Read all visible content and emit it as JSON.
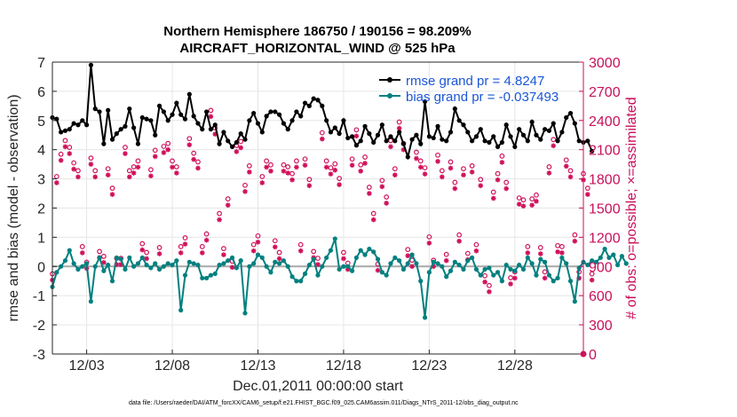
{
  "chart_data": {
    "type": "line",
    "title": "Northern Hemisphere 186750 / 190156 = 98.209%",
    "subtitle": "AIRCRAFT_HORIZONTAL_WIND @ 525 hPa",
    "xlabel": "Dec.01,2011 00:00:00 start",
    "ylabel_left": "rmse and bias (model - observation)",
    "ylabel_right": "# of obs: o=possible; ×=assimilated",
    "x_tick_labels": [
      "12/03",
      "12/08",
      "12/13",
      "12/18",
      "12/23",
      "12/28"
    ],
    "x_tick_days": [
      2,
      7,
      12,
      17,
      22,
      27
    ],
    "xlim_days": [
      0,
      31
    ],
    "ylim_left": [
      -3,
      7
    ],
    "ylim_right": [
      0,
      3000
    ],
    "y_left_ticks": [
      -3,
      -2,
      -1,
      0,
      1,
      2,
      3,
      4,
      5,
      6,
      7
    ],
    "y_right_ticks": [
      0,
      300,
      600,
      900,
      1200,
      1500,
      1800,
      2100,
      2400,
      2700,
      3000
    ],
    "legend": [
      "rmse grand pr = 4.8247",
      "bias grand pr = -0.037493"
    ],
    "legend_position": "top-right",
    "colors": {
      "rmse": "#000000",
      "bias": "#00807f",
      "obs": "#d0105a",
      "right_axis": "#c8105a"
    },
    "series": [
      {
        "name": "rmse grand pr = 4.8247",
        "x_start_day": 0,
        "x_step_days": 0.25,
        "values": [
          5.1,
          5.05,
          4.6,
          4.65,
          4.7,
          4.9,
          4.85,
          5.0,
          4.85,
          6.9,
          5.4,
          5.3,
          4.2,
          5.35,
          4.35,
          4.55,
          4.7,
          4.8,
          5.4,
          4.75,
          4.2,
          5.1,
          5.05,
          5.0,
          4.5,
          5.5,
          5.3,
          5.0,
          5.2,
          5.6,
          5.2,
          5.05,
          5.9,
          5.15,
          4.9,
          4.7,
          5.3,
          4.7,
          4.85,
          4.2,
          4.6,
          4.3,
          4.1,
          4.25,
          4.55,
          4.35,
          5.0,
          5.25,
          4.9,
          4.6,
          5.15,
          5.3,
          5.3,
          5.2,
          4.9,
          4.7,
          5.0,
          5.3,
          5.15,
          5.6,
          5.5,
          5.75,
          5.7,
          5.5,
          5.0,
          4.6,
          4.75,
          4.55,
          5.0,
          4.4,
          4.45,
          4.15,
          4.3,
          4.8,
          4.55,
          4.25,
          4.5,
          4.85,
          4.3,
          4.45,
          4.3,
          4.6,
          4.2,
          3.75,
          4.35,
          4.5,
          4.2,
          5.65,
          4.45,
          4.4,
          4.8,
          4.35,
          4.3,
          4.6,
          5.4,
          5.0,
          4.85,
          4.6,
          4.3,
          4.45,
          4.7,
          4.3,
          4.25,
          4.45,
          4.1,
          4.25,
          4.85,
          4.45,
          4.1,
          4.7,
          4.5,
          4.3,
          4.95,
          4.5,
          4.35,
          4.7,
          4.65,
          4.9,
          4.3,
          4.6,
          5.1,
          5.25,
          4.9,
          4.3,
          4.25,
          4.3,
          3.95
        ]
      },
      {
        "name": "bias grand pr = -0.037493",
        "x_start_day": 0,
        "x_step_days": 0.25,
        "values": [
          -0.7,
          -0.2,
          0.0,
          0.2,
          0.55,
          0.1,
          -0.1,
          0.0,
          0.1,
          -1.2,
          0.0,
          0.3,
          -0.15,
          0.05,
          -0.5,
          0.3,
          0.25,
          -0.1,
          0.3,
          0.0,
          0.1,
          0.3,
          0.05,
          -0.05,
          0.1,
          -0.1,
          0.0,
          0.1,
          0.05,
          0.2,
          -1.5,
          -0.3,
          0.15,
          0.1,
          0.05,
          -0.4,
          -0.4,
          -0.3,
          -0.25,
          0.05,
          0.1,
          0.2,
          0.3,
          -0.05,
          0.2,
          -1.6,
          0.0,
          0.1,
          0.4,
          0.3,
          0.0,
          -0.2,
          0.15,
          0.1,
          0.2,
          0.0,
          -0.35,
          -0.5,
          -0.5,
          -0.25,
          0.05,
          0.25,
          -0.3,
          0.0,
          0.3,
          0.55,
          0.95,
          -0.1,
          0.0,
          0.0,
          -0.15,
          0.3,
          0.55,
          0.4,
          0.6,
          0.5,
          0.25,
          -0.2,
          -0.3,
          0.1,
          0.3,
          0.2,
          -0.1,
          0.1,
          0.4,
          0.1,
          -0.5,
          -1.75,
          -0.2,
          0.15,
          0.1,
          0.0,
          -0.35,
          -0.15,
          0.15,
          0.05,
          -0.1,
          0.2,
          0.3,
          -0.1,
          -0.3,
          -0.1,
          -0.05,
          -0.3,
          -0.2,
          -0.5,
          0.05,
          -0.1,
          -0.15,
          0.05,
          -0.1,
          0.3,
          0.1,
          -0.3,
          0.25,
          0.15,
          -0.3,
          -0.5,
          -0.4,
          0.3,
          0.1,
          -0.5,
          -1.2,
          -0.05,
          0.15,
          0.05,
          0.2,
          0.15,
          0.3,
          0.6,
          0.3,
          0.4,
          0.05,
          0.35,
          0.1
        ]
      },
      {
        "name": "o=possible",
        "x_start_day": 0,
        "x_step_days": 0.25,
        "values": [
          760,
          1760,
          1990,
          2130,
          2060,
          1900,
          1820,
          1040,
          880,
          1950,
          1820,
          990,
          940,
          1840,
          1640,
          920,
          920,
          2060,
          1820,
          1860,
          1920,
          1070,
          980,
          1830,
          2030,
          1030,
          2070,
          2100,
          1920,
          1860,
          1040,
          1130,
          2150,
          2000,
          1910,
          1040,
          1170,
          2440,
          2260,
          1380,
          1020,
          1530,
          890,
          2080,
          2120,
          1670,
          1870,
          1060,
          1150,
          1760,
          1920,
          1880,
          1100,
          980,
          1880,
          1860,
          1790,
          1920,
          1060,
          1940,
          1730,
          990,
          920,
          2210,
          1920,
          1850,
          1890,
          1740,
          980,
          870,
          1940,
          2240,
          1880,
          1960,
          1650,
          1380,
          860,
          1720,
          1550,
          2130,
          1840,
          2320,
          2100,
          1010,
          900,
          2010,
          1920,
          1850,
          1140,
          900,
          1980,
          1820,
          960,
          1910,
          1700,
          1160,
          1840,
          970,
          1870,
          1060,
          1730,
          740,
          640,
          1600,
          1790,
          1970,
          1700,
          720,
          780,
          1540,
          1520,
          1040,
          1530,
          1570,
          1030,
          780,
          1860,
          2140,
          1050,
          1040,
          1930,
          1820,
          1160,
          780,
          1790,
          1640,
          760
        ]
      }
    ]
  },
  "footnote": "data file: /Users/raeder/DAI/ATM_forcXX/CAM6_setup/f.e21.FHIST_BGC.f09_025.CAM6assim.011/Diags_NTrS_2011-12/obs_diag_output.nc"
}
